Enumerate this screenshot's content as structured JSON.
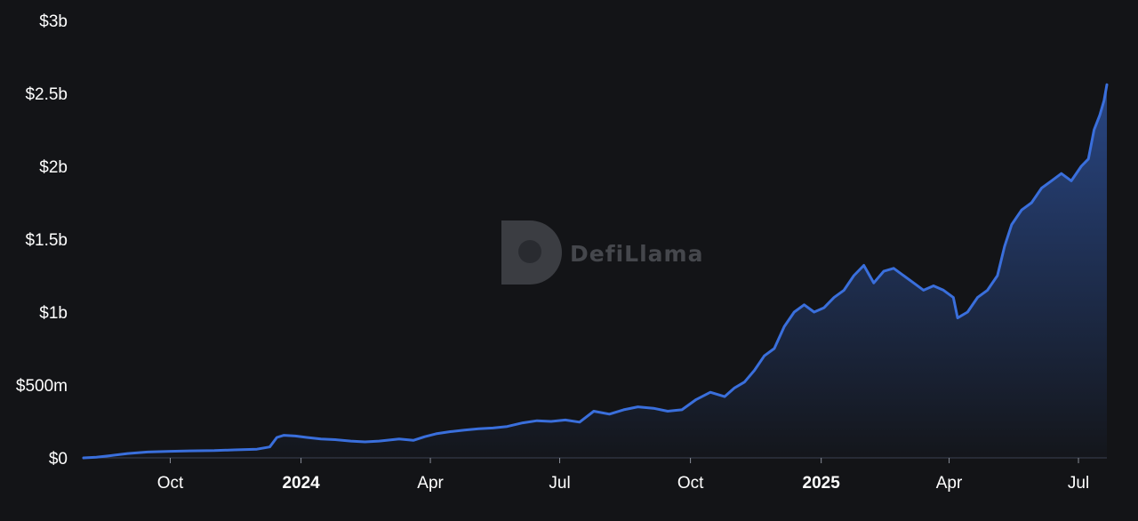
{
  "watermark": {
    "text": "DefiLlama"
  },
  "colors": {
    "background": "#131417",
    "line": "#3a6fdc",
    "axis": "#3b4150"
  },
  "chart_data": {
    "type": "area",
    "title": "",
    "xlabel": "",
    "ylabel": "",
    "ylim": [
      0,
      3000000000
    ],
    "grid": false,
    "legend": "none",
    "y_ticks": [
      {
        "value": 0,
        "label": "$0"
      },
      {
        "value": 500000000,
        "label": "$500m"
      },
      {
        "value": 1000000000,
        "label": "$1b"
      },
      {
        "value": 1500000000,
        "label": "$1.5b"
      },
      {
        "value": 2000000000,
        "label": "$2b"
      },
      {
        "value": 2500000000,
        "label": "$2.5b"
      },
      {
        "value": 3000000000,
        "label": "$3b"
      }
    ],
    "x_ticks": [
      {
        "date": "2023-10-01",
        "label": "Oct",
        "bold": false
      },
      {
        "date": "2024-01-01",
        "label": "2024",
        "bold": true
      },
      {
        "date": "2024-04-01",
        "label": "Apr",
        "bold": false
      },
      {
        "date": "2024-07-01",
        "label": "Jul",
        "bold": false
      },
      {
        "date": "2024-10-01",
        "label": "Oct",
        "bold": false
      },
      {
        "date": "2025-01-01",
        "label": "2025",
        "bold": true
      },
      {
        "date": "2025-04-01",
        "label": "Apr",
        "bold": false
      },
      {
        "date": "2025-07-01",
        "label": "Jul",
        "bold": false
      }
    ],
    "xlim": [
      "2023-08-01",
      "2025-07-21"
    ],
    "series": [
      {
        "x": [
          "2023-08-01",
          "2023-08-10",
          "2023-08-20",
          "2023-09-01",
          "2023-09-15",
          "2023-10-01",
          "2023-10-15",
          "2023-11-01",
          "2023-11-15",
          "2023-12-01",
          "2023-12-10",
          "2023-12-15",
          "2023-12-20",
          "2023-12-28",
          "2024-01-05",
          "2024-01-15",
          "2024-01-25",
          "2024-02-05",
          "2024-02-15",
          "2024-02-25",
          "2024-03-10",
          "2024-03-20",
          "2024-03-28",
          "2024-04-05",
          "2024-04-15",
          "2024-04-25",
          "2024-05-05",
          "2024-05-15",
          "2024-05-25",
          "2024-06-05",
          "2024-06-15",
          "2024-06-25",
          "2024-07-05",
          "2024-07-15",
          "2024-07-25",
          "2024-08-05",
          "2024-08-15",
          "2024-08-25",
          "2024-09-05",
          "2024-09-15",
          "2024-09-25",
          "2024-10-05",
          "2024-10-15",
          "2024-10-25",
          "2024-11-01",
          "2024-11-08",
          "2024-11-15",
          "2024-11-22",
          "2024-11-29",
          "2024-12-06",
          "2024-12-13",
          "2024-12-20",
          "2024-12-27",
          "2025-01-03",
          "2025-01-10",
          "2025-01-17",
          "2025-01-24",
          "2025-01-31",
          "2025-02-07",
          "2025-02-14",
          "2025-02-21",
          "2025-02-28",
          "2025-03-07",
          "2025-03-14",
          "2025-03-21",
          "2025-03-28",
          "2025-04-04",
          "2025-04-07",
          "2025-04-14",
          "2025-04-21",
          "2025-04-28",
          "2025-05-05",
          "2025-05-10",
          "2025-05-15",
          "2025-05-22",
          "2025-05-29",
          "2025-06-05",
          "2025-06-12",
          "2025-06-19",
          "2025-06-26",
          "2025-07-03",
          "2025-07-08",
          "2025-07-12",
          "2025-07-16",
          "2025-07-19",
          "2025-07-21"
        ],
        "values": [
          0,
          5000000,
          15000000,
          30000000,
          40000000,
          45000000,
          48000000,
          50000000,
          55000000,
          60000000,
          75000000,
          140000000,
          155000000,
          150000000,
          140000000,
          130000000,
          125000000,
          115000000,
          110000000,
          115000000,
          130000000,
          120000000,
          145000000,
          165000000,
          180000000,
          190000000,
          200000000,
          205000000,
          215000000,
          240000000,
          255000000,
          250000000,
          260000000,
          245000000,
          320000000,
          300000000,
          330000000,
          350000000,
          340000000,
          320000000,
          330000000,
          400000000,
          450000000,
          420000000,
          480000000,
          520000000,
          600000000,
          700000000,
          750000000,
          900000000,
          1000000000,
          1050000000,
          1000000000,
          1030000000,
          1100000000,
          1150000000,
          1250000000,
          1320000000,
          1200000000,
          1280000000,
          1300000000,
          1250000000,
          1200000000,
          1150000000,
          1180000000,
          1150000000,
          1100000000,
          960000000,
          1000000000,
          1100000000,
          1150000000,
          1250000000,
          1450000000,
          1600000000,
          1700000000,
          1750000000,
          1850000000,
          1900000000,
          1950000000,
          1900000000,
          2000000000,
          2050000000,
          2250000000,
          2350000000,
          2450000000,
          2560000000
        ]
      }
    ]
  }
}
